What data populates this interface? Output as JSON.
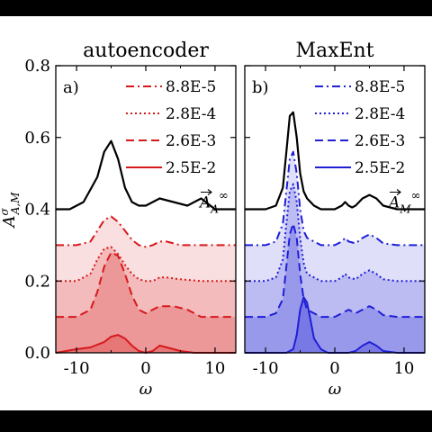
{
  "chart_data": [
    {
      "type": "area",
      "title": "autoencoder",
      "panel_label": "a)",
      "xlabel": "ω",
      "ylabel": "A^σ_{A,M}",
      "xlim": [
        -13,
        13
      ],
      "ylim": [
        0.0,
        0.8
      ],
      "xticks": [
        -10,
        0,
        10
      ],
      "yticks": [
        "0.0",
        "0.2",
        "0.4",
        "0.6",
        "0.8"
      ],
      "grid": false,
      "legend_position": "top-right",
      "color": "#d7191c",
      "reference": {
        "label_base": "A",
        "label_sub": "A",
        "label_sup": "∞",
        "color": "#000000",
        "x": [
          -13,
          -11,
          -9,
          -7,
          -6,
          -5,
          -4,
          -3,
          -2,
          -1,
          0,
          1,
          2,
          3,
          4,
          6,
          8,
          10,
          13
        ],
        "y": [
          0.4,
          0.4,
          0.42,
          0.49,
          0.56,
          0.59,
          0.54,
          0.46,
          0.42,
          0.41,
          0.41,
          0.42,
          0.43,
          0.425,
          0.42,
          0.41,
          0.43,
          0.4,
          0.4
        ]
      },
      "series": [
        {
          "name": "8.8E-5",
          "dash": "dashdot",
          "x": [
            -13,
            -10,
            -8,
            -7,
            -6,
            -5,
            -4,
            -3,
            -2,
            -1,
            0,
            1,
            2,
            3,
            5,
            8,
            10,
            13
          ],
          "y": [
            0.3,
            0.3,
            0.31,
            0.34,
            0.37,
            0.38,
            0.365,
            0.34,
            0.315,
            0.3,
            0.295,
            0.3,
            0.31,
            0.31,
            0.3,
            0.3,
            0.3,
            0.3
          ]
        },
        {
          "name": "2.8E-4",
          "dash": "dotted",
          "x": [
            -13,
            -10,
            -8,
            -7,
            -6,
            -5,
            -4,
            -3,
            -2,
            -1,
            0,
            1,
            2,
            3,
            5,
            8,
            10,
            13
          ],
          "y": [
            0.2,
            0.2,
            0.22,
            0.26,
            0.29,
            0.295,
            0.275,
            0.245,
            0.22,
            0.205,
            0.2,
            0.2,
            0.21,
            0.21,
            0.205,
            0.2,
            0.2,
            0.2
          ]
        },
        {
          "name": "2.6E-3",
          "dash": "dashed",
          "x": [
            -13,
            -10,
            -8,
            -7,
            -6,
            -5,
            -4,
            -3,
            -2,
            -1,
            0,
            1,
            2,
            4,
            6,
            8,
            10,
            13
          ],
          "y": [
            0.1,
            0.1,
            0.12,
            0.17,
            0.24,
            0.28,
            0.27,
            0.22,
            0.16,
            0.12,
            0.11,
            0.12,
            0.13,
            0.13,
            0.12,
            0.1,
            0.1,
            0.1
          ]
        },
        {
          "name": "2.5E-2",
          "dash": "solid",
          "x": [
            -13,
            -10,
            -8,
            -6,
            -5,
            -4,
            -3,
            -2,
            -1,
            0,
            1,
            2,
            3,
            5,
            7,
            10,
            13
          ],
          "y": [
            0.0,
            0.01,
            0.015,
            0.03,
            0.045,
            0.05,
            0.04,
            0.02,
            0.005,
            0.0,
            0.005,
            0.02,
            0.015,
            0.005,
            0.0,
            0.0,
            0.0
          ]
        }
      ]
    },
    {
      "type": "area",
      "title": "MaxEnt",
      "panel_label": "b)",
      "xlabel": "ω",
      "ylabel": "",
      "xlim": [
        -13,
        13
      ],
      "ylim": [
        0.0,
        0.8
      ],
      "xticks": [
        -10,
        0,
        10
      ],
      "yticks": [],
      "grid": false,
      "legend_position": "top-right",
      "color": "#1f1fd6",
      "reference": {
        "label_base": "A",
        "label_sub": "M",
        "label_sup": "∞",
        "color": "#000000",
        "x": [
          -13,
          -10,
          -8.5,
          -7.5,
          -7,
          -6.5,
          -6,
          -5.5,
          -5,
          -4.5,
          -4,
          -3,
          -2,
          -1,
          0,
          1,
          1.5,
          2,
          2.5,
          3,
          4,
          5,
          6,
          7,
          9,
          11,
          13
        ],
        "y": [
          0.4,
          0.4,
          0.41,
          0.46,
          0.56,
          0.66,
          0.67,
          0.6,
          0.5,
          0.45,
          0.43,
          0.41,
          0.4,
          0.4,
          0.4,
          0.41,
          0.42,
          0.41,
          0.405,
          0.41,
          0.43,
          0.44,
          0.43,
          0.41,
          0.4,
          0.4,
          0.4
        ]
      },
      "series": [
        {
          "name": "8.8E-5",
          "dash": "dashdot",
          "x": [
            -13,
            -10,
            -8.5,
            -7.5,
            -7,
            -6.5,
            -6,
            -5.5,
            -5,
            -4.5,
            -4,
            -3,
            -2,
            0,
            1,
            1.5,
            2,
            3,
            4,
            5,
            6,
            7,
            9,
            13
          ],
          "y": [
            0.3,
            0.3,
            0.31,
            0.36,
            0.45,
            0.54,
            0.56,
            0.5,
            0.4,
            0.34,
            0.32,
            0.31,
            0.3,
            0.3,
            0.31,
            0.32,
            0.31,
            0.305,
            0.32,
            0.33,
            0.32,
            0.305,
            0.3,
            0.3
          ]
        },
        {
          "name": "2.8E-4",
          "dash": "dotted",
          "x": [
            -13,
            -10,
            -8.5,
            -7.5,
            -7,
            -6.5,
            -6,
            -5.5,
            -5,
            -4.5,
            -4,
            -3,
            -2,
            0,
            1,
            1.5,
            2,
            3,
            4,
            5,
            6,
            7,
            9,
            13
          ],
          "y": [
            0.2,
            0.2,
            0.21,
            0.26,
            0.36,
            0.45,
            0.47,
            0.42,
            0.32,
            0.25,
            0.22,
            0.21,
            0.2,
            0.2,
            0.21,
            0.22,
            0.21,
            0.205,
            0.22,
            0.23,
            0.22,
            0.205,
            0.2,
            0.2
          ]
        },
        {
          "name": "2.6E-3",
          "dash": "dashed",
          "x": [
            -13,
            -10,
            -8.5,
            -7.5,
            -7,
            -6.5,
            -6,
            -5.5,
            -5,
            -4.5,
            -4,
            -3,
            -2,
            0,
            1,
            2,
            3,
            4,
            5,
            6,
            7,
            9,
            13
          ],
          "y": [
            0.1,
            0.1,
            0.11,
            0.15,
            0.24,
            0.33,
            0.36,
            0.32,
            0.22,
            0.15,
            0.12,
            0.11,
            0.1,
            0.1,
            0.11,
            0.12,
            0.11,
            0.12,
            0.13,
            0.12,
            0.105,
            0.1,
            0.1
          ]
        },
        {
          "name": "2.5E-2",
          "dash": "solid",
          "x": [
            -13,
            -10,
            -7,
            -6,
            -5.5,
            -5,
            -4.5,
            -4,
            -3.5,
            -3,
            -2,
            -1,
            0,
            2,
            3,
            4,
            5,
            6,
            7,
            9,
            13
          ],
          "y": [
            0.0,
            0.0,
            0.0,
            0.01,
            0.05,
            0.12,
            0.155,
            0.14,
            0.09,
            0.04,
            0.01,
            0.0,
            0.0,
            0.0,
            0.005,
            0.02,
            0.03,
            0.02,
            0.005,
            0.0,
            0.0
          ]
        }
      ]
    }
  ]
}
